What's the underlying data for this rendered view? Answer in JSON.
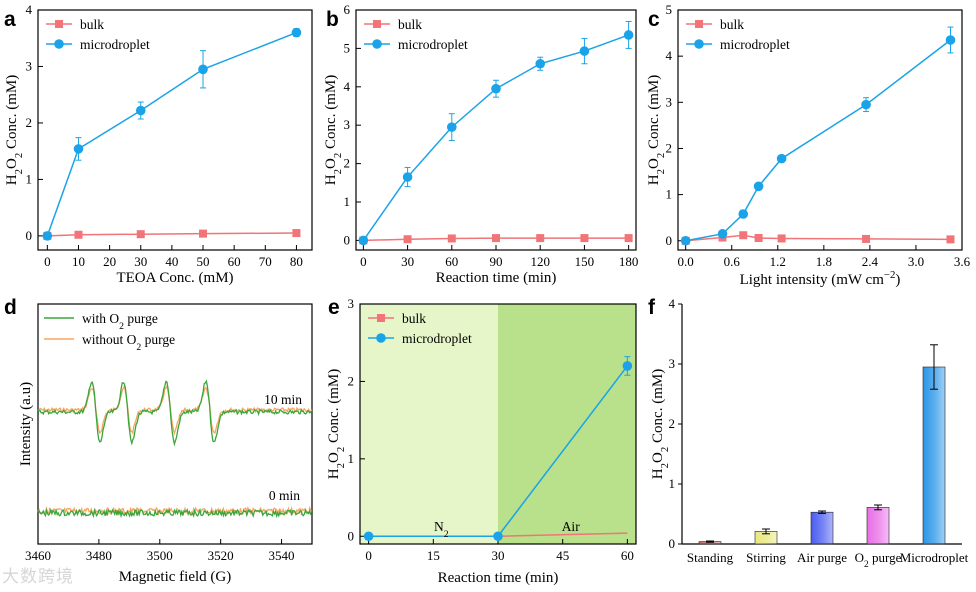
{
  "colors": {
    "bulk": "#f07478",
    "microdroplet": "#1aa3e8",
    "with_o2": "#3aa63a",
    "without_o2": "#f5a55c",
    "n2_region": "#e6f6c8",
    "air_region": "#b9e08a"
  },
  "watermark": "大数跨境",
  "chart_data": [
    {
      "panel": "a",
      "type": "line",
      "xlabel": "TEOA Conc. (mM)",
      "ylabel_main": "H",
      "ylabel_sub1": "2",
      "ylabel_mid": "O",
      "ylabel_sub2": "2",
      "ylabel_rest": " Conc. (mM)",
      "xlim": [
        -3,
        85
      ],
      "ylim": [
        -0.25,
        4
      ],
      "xticks": [
        0,
        10,
        20,
        30,
        40,
        50,
        60,
        70,
        80
      ],
      "yticks": [
        0,
        1,
        2,
        3,
        4
      ],
      "legend": [
        "bulk",
        "microdroplet"
      ],
      "series": [
        {
          "name": "bulk",
          "marker": "square",
          "x": [
            0,
            10,
            30,
            50,
            80
          ],
          "y": [
            0,
            0.02,
            0.03,
            0.04,
            0.05
          ]
        },
        {
          "name": "microdroplet",
          "marker": "circle",
          "x": [
            0,
            10,
            30,
            50,
            80
          ],
          "y": [
            0,
            1.54,
            2.22,
            2.95,
            3.6
          ],
          "err": [
            0,
            0.2,
            0.15,
            0.33,
            0.07
          ]
        }
      ]
    },
    {
      "panel": "b",
      "type": "line",
      "xlabel": "Reaction time (min)",
      "ylabel_main": "H",
      "ylabel_sub1": "2",
      "ylabel_mid": "O",
      "ylabel_sub2": "2",
      "ylabel_rest": " Conc. (mM)",
      "xlim": [
        -5,
        185
      ],
      "ylim": [
        -0.25,
        6
      ],
      "xticks": [
        0,
        30,
        60,
        90,
        120,
        150,
        180
      ],
      "yticks": [
        0,
        1,
        2,
        3,
        4,
        5,
        6
      ],
      "legend": [
        "bulk",
        "microdroplet"
      ],
      "series": [
        {
          "name": "bulk",
          "marker": "square",
          "x": [
            0,
            30,
            60,
            90,
            120,
            150,
            180
          ],
          "y": [
            0,
            0.03,
            0.05,
            0.06,
            0.06,
            0.06,
            0.06
          ]
        },
        {
          "name": "microdroplet",
          "marker": "circle",
          "x": [
            0,
            30,
            60,
            90,
            120,
            150,
            180
          ],
          "y": [
            0,
            1.65,
            2.95,
            3.95,
            4.6,
            4.93,
            5.35
          ],
          "err": [
            0,
            0.25,
            0.35,
            0.22,
            0.17,
            0.33,
            0.35
          ]
        }
      ]
    },
    {
      "panel": "c",
      "type": "line",
      "xlabel": "Light intensity (mW cm",
      "xlabel_sup": "−2",
      "xlabel_end": ")",
      "ylabel_main": "H",
      "ylabel_sub1": "2",
      "ylabel_mid": "O",
      "ylabel_sub2": "2",
      "ylabel_rest": " Conc. (mM)",
      "xlim": [
        -0.1,
        3.6
      ],
      "ylim": [
        -0.2,
        5
      ],
      "xticks": [
        0.0,
        0.6,
        1.2,
        1.8,
        2.4,
        3.0,
        3.6
      ],
      "yticks": [
        0,
        1,
        2,
        3,
        4,
        5
      ],
      "legend": [
        "bulk",
        "microdroplet"
      ],
      "series": [
        {
          "name": "bulk",
          "marker": "square",
          "x": [
            0,
            0.48,
            0.75,
            0.95,
            1.25,
            2.35,
            3.45
          ],
          "y": [
            0,
            0.07,
            0.12,
            0.06,
            0.05,
            0.04,
            0.03
          ]
        },
        {
          "name": "microdroplet",
          "marker": "circle",
          "x": [
            0,
            0.48,
            0.75,
            0.95,
            1.25,
            2.35,
            3.45
          ],
          "y": [
            0,
            0.15,
            0.58,
            1.18,
            1.78,
            2.95,
            4.35
          ],
          "err": [
            0,
            0,
            0.08,
            0,
            0,
            0.15,
            0.28
          ]
        }
      ]
    },
    {
      "panel": "d",
      "type": "line",
      "xlabel": "Magnetic field (G)",
      "ylabel": "Intensity (a.u)",
      "xlim": [
        3460,
        3550
      ],
      "xticks": [
        3460,
        3480,
        3500,
        3520,
        3540
      ],
      "legend_with_a": "with O",
      "legend_with_sub": "2",
      "legend_with_b": " purge",
      "legend_without_a": "without O",
      "legend_without_sub": "2",
      "legend_without_b": " purge",
      "annotations": [
        "10 min",
        "0 min"
      ],
      "series": [
        {
          "name": "with O2 purge",
          "lines": [
            3479,
            3489.5,
            3503.5,
            3516.5
          ],
          "amplitude": 1.0
        },
        {
          "name": "without O2 purge",
          "lines": [
            3479,
            3489.5,
            3503.5,
            3516.5
          ],
          "amplitude": 0.72
        }
      ]
    },
    {
      "panel": "e",
      "type": "line",
      "xlabel": "Reaction time (min)",
      "ylabel_main": "H",
      "ylabel_sub1": "2",
      "ylabel_mid": "O",
      "ylabel_sub2": "2",
      "ylabel_rest": " Conc. (mM)",
      "xlim": [
        -2,
        62
      ],
      "ylim": [
        -0.1,
        3
      ],
      "xticks": [
        0,
        15,
        30,
        45,
        60
      ],
      "yticks": [
        0,
        1,
        2,
        3
      ],
      "legend": [
        "bulk",
        "microdroplet"
      ],
      "regions": [
        {
          "label_main": "N",
          "label_sub": "2",
          "from": -2,
          "to": 30
        },
        {
          "label": "Air",
          "from": 30,
          "to": 62
        }
      ],
      "series": [
        {
          "name": "bulk",
          "marker": "none",
          "x": [
            0,
            30,
            60
          ],
          "y": [
            0,
            0,
            0.04
          ]
        },
        {
          "name": "microdroplet",
          "marker": "circle",
          "x": [
            0,
            30,
            60
          ],
          "y": [
            0,
            0,
            2.2
          ],
          "err": [
            0,
            0,
            0.12
          ]
        }
      ]
    },
    {
      "panel": "f",
      "type": "bar",
      "ylabel_main": "H",
      "ylabel_sub1": "2",
      "ylabel_mid": "O",
      "ylabel_sub2": "2",
      "ylabel_rest": " Conc. (mM)",
      "ylim": [
        0,
        4
      ],
      "yticks": [
        0,
        1,
        2,
        3,
        4
      ],
      "categories": [
        "Standing",
        "Stirring",
        "Air purge",
        "O2 purge",
        "Microdroplet"
      ],
      "category_labels": [
        {
          "a": "Standing",
          "sub": "",
          "b": ""
        },
        {
          "a": "Stirring",
          "sub": "",
          "b": ""
        },
        {
          "a": "Air purge",
          "sub": "",
          "b": ""
        },
        {
          "a": "O",
          "sub": "2",
          "b": " purge"
        },
        {
          "a": "Microdroplet",
          "sub": "",
          "b": ""
        }
      ],
      "values": [
        0.04,
        0.21,
        0.53,
        0.61,
        2.95
      ],
      "err": [
        0.01,
        0.04,
        0.02,
        0.04,
        0.37
      ],
      "bar_colors": [
        "#c46a6a",
        "#e9e77a",
        "#4a5cf0",
        "#e86ee6",
        "#2a95e8"
      ]
    }
  ]
}
